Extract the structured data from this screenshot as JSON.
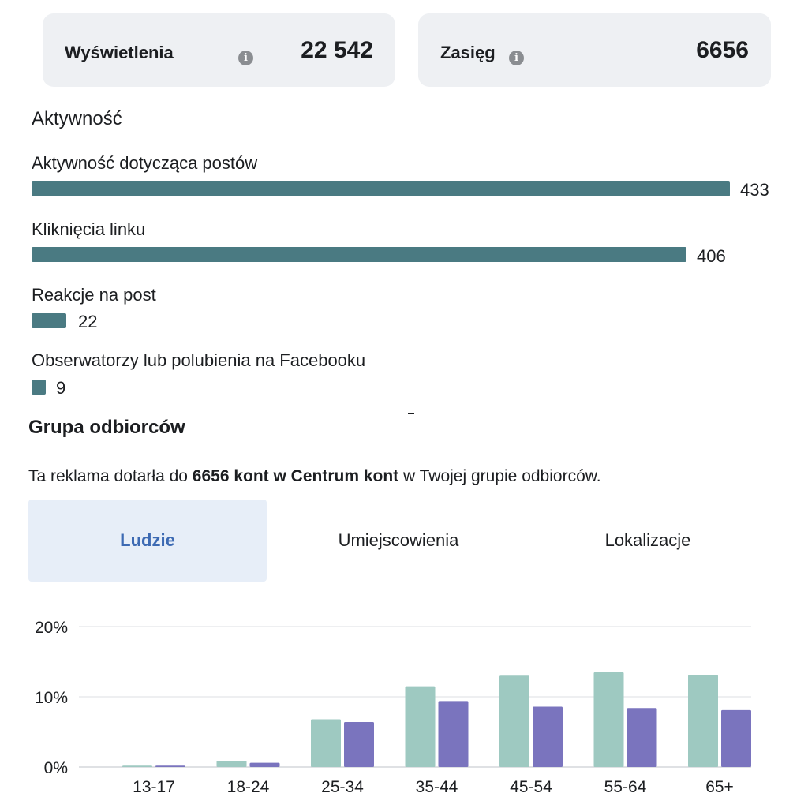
{
  "metrics": {
    "views": {
      "label": "Wyświetlenia",
      "value": "22 542"
    },
    "reach": {
      "label": "Zasięg",
      "value": "6656"
    }
  },
  "activity": {
    "title": "Aktywność",
    "items": [
      {
        "label": "Aktywność dotycząca postów",
        "value": "433"
      },
      {
        "label": "Kliknięcia linku",
        "value": "406"
      },
      {
        "label": "Reakcje na post",
        "value": "22"
      },
      {
        "label": "Obserwatorzy lub polubienia na Facebooku",
        "value": "9"
      }
    ]
  },
  "audience": {
    "title": "Grupa odbiorców",
    "description_pre": "Ta reklama dotarła do ",
    "description_bold": "6656 kont w Centrum kont",
    "description_post": " w Twojej grupie odbiorców.",
    "tabs": [
      {
        "label": "Ludzie",
        "active": true
      },
      {
        "label": "Umiejscowienia",
        "active": false
      },
      {
        "label": "Lokalizacje",
        "active": false
      }
    ]
  },
  "colors": {
    "bar_activity": "#4a7a82",
    "series_a": "#9ec9c1",
    "series_b": "#7a74be",
    "tab_active_bg": "#e7eef8",
    "tab_active_text": "#3d6ab3"
  },
  "icons": {
    "info": "info-icon"
  },
  "chart_data": {
    "type": "bar",
    "categories": [
      "13-17",
      "18-24",
      "25-34",
      "35-44",
      "45-54",
      "55-64",
      "65+"
    ],
    "series": [
      {
        "values": [
          0.2,
          0.9,
          6.8,
          11.5,
          13.0,
          13.5,
          13.1
        ]
      },
      {
        "values": [
          0.2,
          0.6,
          6.4,
          9.4,
          8.6,
          8.4,
          8.1
        ]
      }
    ],
    "yticks": [
      "0%",
      "10%",
      "20%"
    ],
    "ylim": [
      0,
      20
    ],
    "grid": true
  }
}
